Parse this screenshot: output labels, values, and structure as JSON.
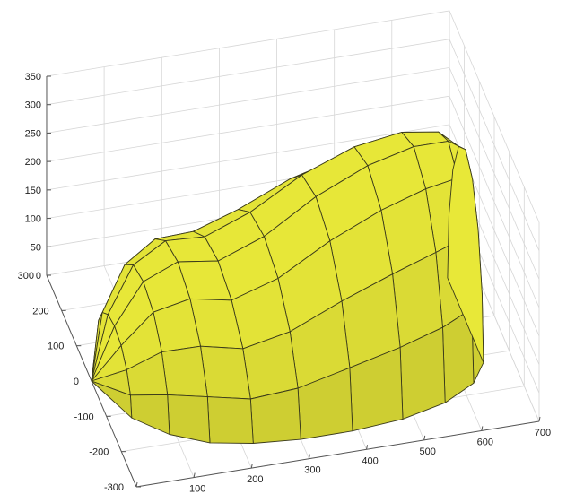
{
  "chart_data": {
    "type": "surface",
    "title": "",
    "xlabel": "",
    "ylabel": "",
    "zlabel": "",
    "xlim": [
      0,
      700
    ],
    "ylim": [
      -300,
      300
    ],
    "zlim": [
      0,
      350
    ],
    "x_ticks": [
      "0",
      "100",
      "200",
      "300",
      "400",
      "500",
      "600",
      "700"
    ],
    "y_ticks": [
      "-300",
      "-200",
      "-100",
      "0",
      "100",
      "200",
      "300"
    ],
    "z_ticks": [
      "0",
      "50",
      "100",
      "150",
      "200",
      "250",
      "300",
      "350"
    ],
    "grid": true,
    "colors": {
      "face": "#e8e838",
      "edge": "#3a3a1a",
      "grid": "#d6d6d6"
    },
    "series": [
      {
        "surface": "closed faceted body, pointed apex near x=0 y=0, widening along x toward 650",
        "x": [
          0,
          40,
          90,
          150,
          220,
          300,
          390,
          480,
          560,
          620,
          650
        ],
        "half_width_y": [
          0,
          115,
          175,
          215,
          235,
          245,
          245,
          235,
          210,
          170,
          120
        ],
        "top_z": [
          0,
          90,
          160,
          185,
          175,
          205,
          260,
          300,
          320,
          320,
          300
        ]
      }
    ]
  }
}
